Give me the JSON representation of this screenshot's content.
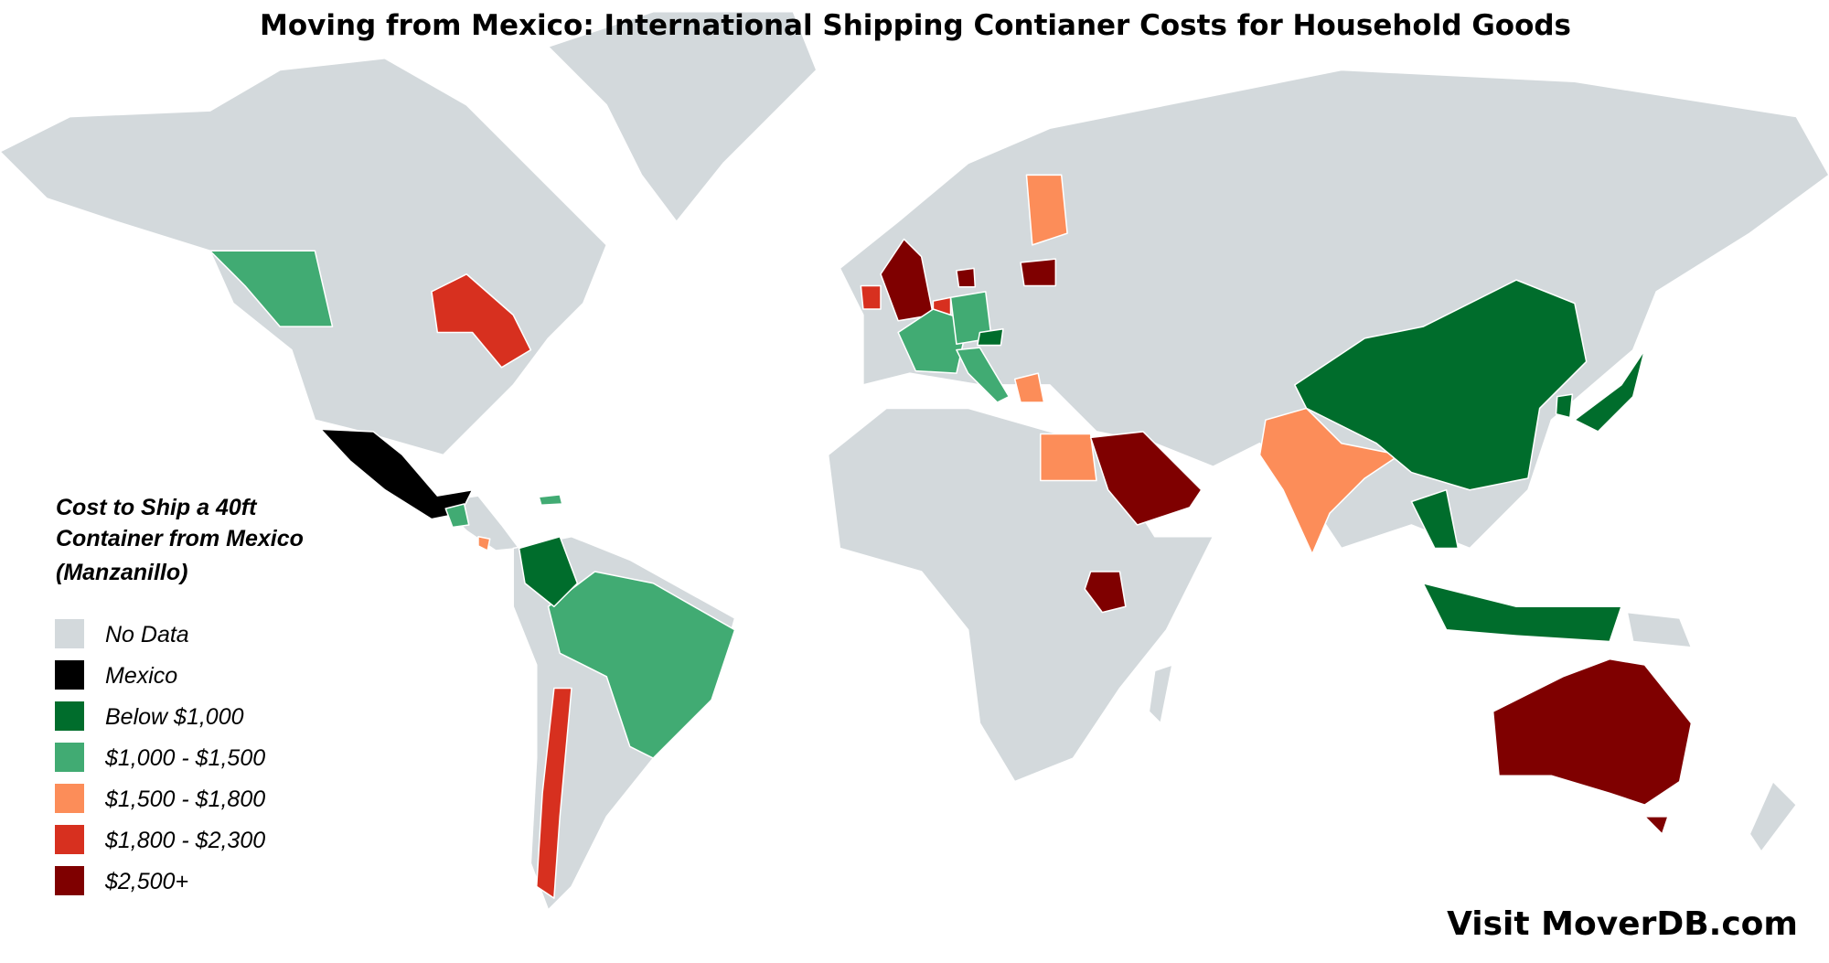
{
  "title": "Moving from Mexico: International Shipping Contianer Costs for Household Goods",
  "legend": {
    "title": [
      "Cost to Ship a 40ft",
      "Container from Mexico",
      "(Manzanillo)"
    ],
    "items": [
      {
        "label": "No Data",
        "color": "#d3d9dc"
      },
      {
        "label": "Mexico",
        "color": "#000000"
      },
      {
        "label": "Below $1,000",
        "color": "#006d2c"
      },
      {
        "label": "$1,000 - $1,500",
        "color": "#41ab73"
      },
      {
        "label": "$1,500 - $1,800",
        "color": "#fc8d59"
      },
      {
        "label": "$1,800 - $2,300",
        "color": "#d7301f"
      },
      {
        "label": "$2,500+",
        "color": "#7f0000"
      }
    ]
  },
  "footer": "Visit MoverDB.com"
}
